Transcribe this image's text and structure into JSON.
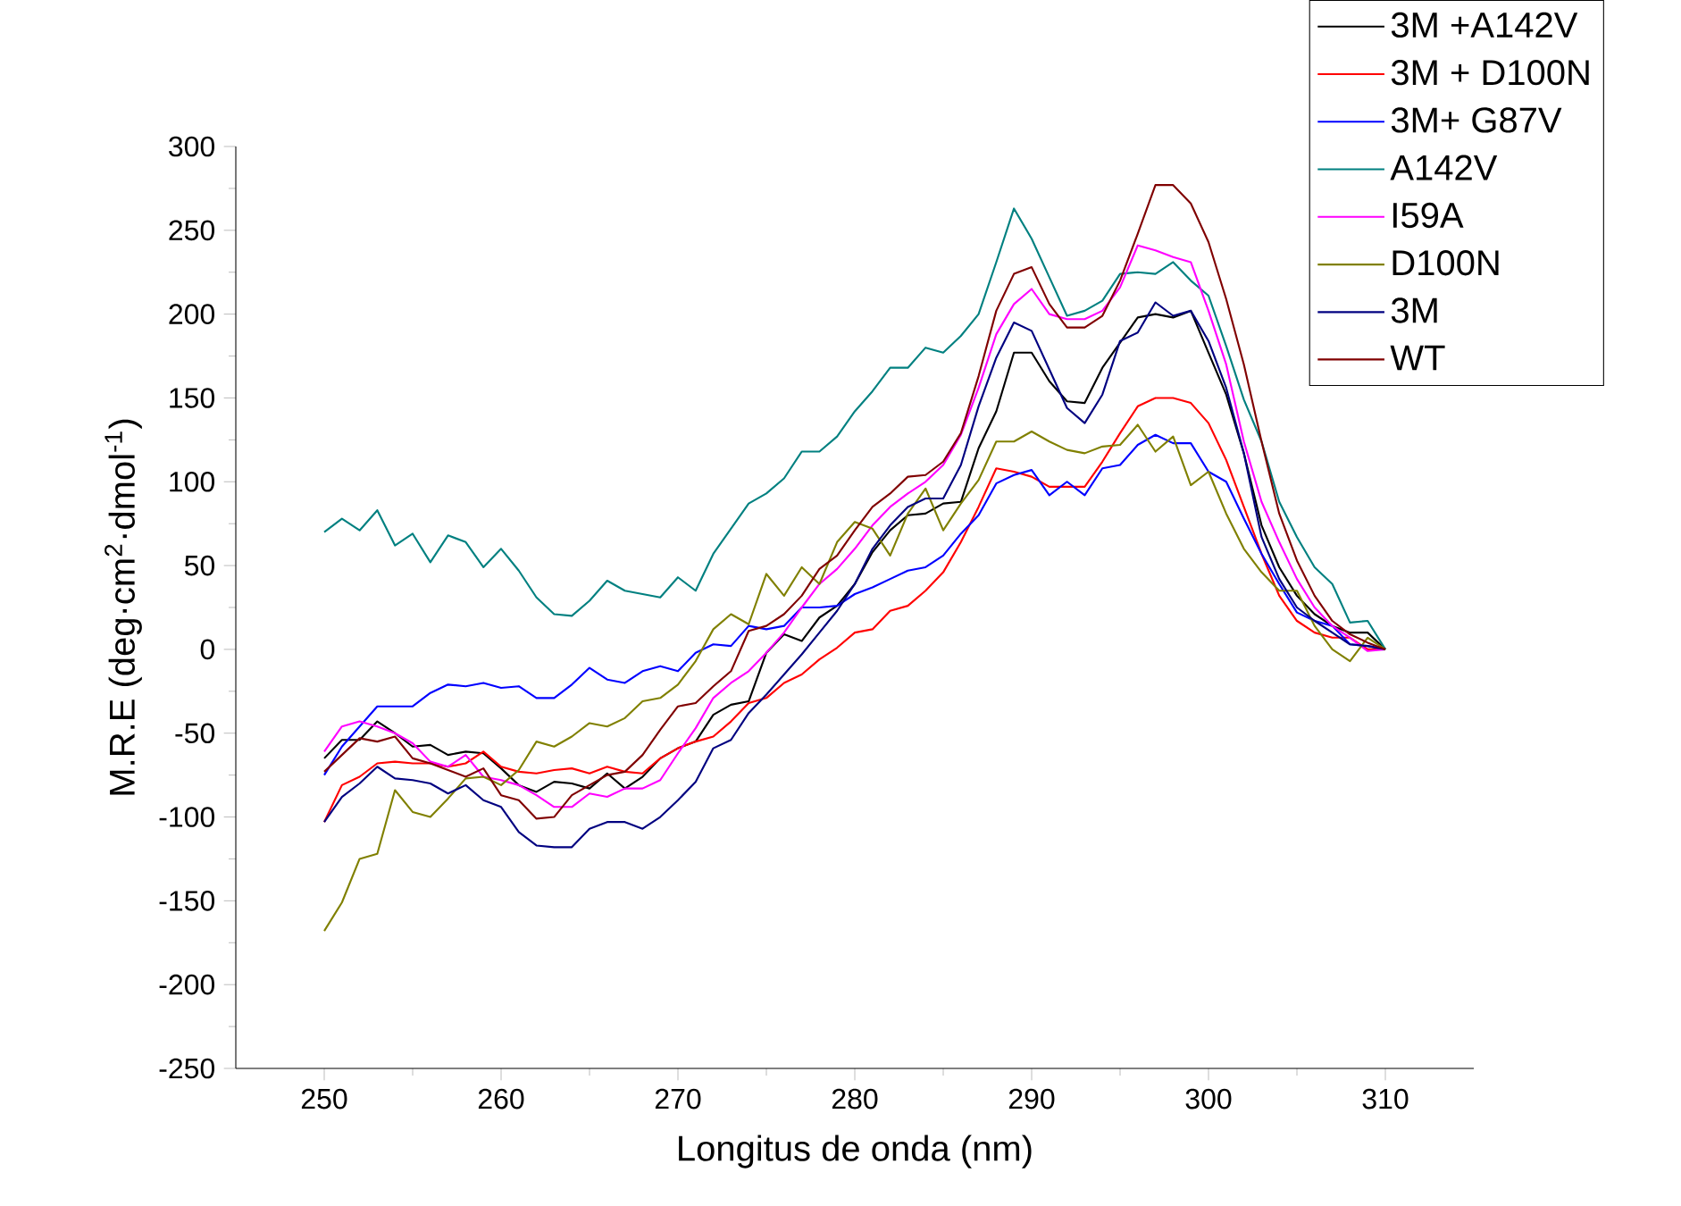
{
  "chart_data": {
    "type": "line",
    "xlabel": "Longitus de onda (nm)",
    "ylabel": "M.R.E (deg·cm$^{2}$·dmol$^{-1}$)",
    "xlim": [
      245,
      315
    ],
    "ylim": [
      -250,
      300
    ],
    "xticks": [
      250,
      260,
      270,
      280,
      290,
      300,
      310
    ],
    "yticks": [
      -250,
      -200,
      -150,
      -100,
      -50,
      0,
      50,
      100,
      150,
      200,
      250,
      300
    ],
    "legend": "top right",
    "x": [
      250,
      251,
      252,
      253,
      254,
      255,
      256,
      257,
      258,
      259,
      260,
      261,
      262,
      263,
      264,
      265,
      266,
      267,
      268,
      269,
      270,
      271,
      272,
      273,
      274,
      275,
      276,
      277,
      278,
      279,
      280,
      281,
      282,
      283,
      284,
      285,
      286,
      287,
      288,
      289,
      290,
      291,
      292,
      293,
      294,
      295,
      296,
      297,
      298,
      299,
      300,
      301,
      302,
      303,
      304,
      305,
      306,
      307,
      308,
      309,
      310
    ],
    "series": [
      {
        "name": "3M +A142V",
        "color": "#000000",
        "values": [
          -65,
          -54,
          -54,
          -43,
          -50,
          -58,
          -57,
          -63,
          -61,
          -62,
          -71,
          -81,
          -85,
          -79,
          -80,
          -83,
          -74,
          -83,
          -76,
          -65,
          -59,
          -55,
          -39,
          -33,
          -31,
          -2,
          9,
          5,
          19,
          26,
          39,
          58,
          71,
          80,
          81,
          87,
          88,
          120,
          142,
          177,
          177,
          160,
          148,
          147,
          168,
          183,
          198,
          200,
          198,
          202,
          177,
          152,
          117,
          74,
          49,
          32,
          21,
          14,
          10,
          10,
          0
        ]
      },
      {
        "name": "3M + D100N",
        "color": "#ff0000",
        "values": [
          -103,
          -81,
          -76,
          -68,
          -67,
          -68,
          -68,
          -70,
          -68,
          -61,
          -70,
          -73,
          -74,
          -72,
          -71,
          -74,
          -70,
          -73,
          -74,
          -65,
          -59,
          -55,
          -52,
          -43,
          -32,
          -29,
          -20,
          -15,
          -6,
          1,
          10,
          12,
          23,
          26,
          35,
          46,
          64,
          85,
          108,
          106,
          103,
          97,
          97,
          97,
          112,
          129,
          145,
          150,
          150,
          147,
          135,
          113,
          85,
          57,
          32,
          17,
          10,
          7,
          7,
          0,
          0
        ]
      },
      {
        "name": "3M+ G87V",
        "color": "#0000ff",
        "values": [
          -75,
          -58,
          -46,
          -34,
          -34,
          -34,
          -26,
          -21,
          -22,
          -20,
          -23,
          -22,
          -29,
          -29,
          -21,
          -11,
          -18,
          -20,
          -13,
          -10,
          -13,
          -2,
          3,
          2,
          14,
          12,
          14,
          25,
          25,
          26,
          33,
          37,
          42,
          47,
          49,
          56,
          69,
          80,
          99,
          104,
          107,
          92,
          100,
          92,
          108,
          110,
          122,
          128,
          123,
          123,
          106,
          100,
          78,
          57,
          39,
          22,
          17,
          14,
          3,
          2,
          0
        ]
      },
      {
        "name": "A142V",
        "color": "#008080",
        "values": [
          70,
          78,
          71,
          83,
          62,
          69,
          52,
          68,
          64,
          49,
          60,
          47,
          31,
          21,
          20,
          29,
          41,
          35,
          33,
          31,
          43,
          35,
          57,
          72,
          87,
          93,
          102,
          118,
          118,
          127,
          142,
          154,
          168,
          168,
          180,
          177,
          187,
          200,
          231,
          263,
          245,
          222,
          199,
          202,
          208,
          224,
          225,
          224,
          231,
          220,
          211,
          181,
          149,
          124,
          88,
          67,
          49,
          39,
          16,
          17,
          0
        ]
      },
      {
        "name": "I59A",
        "color": "#ff00ff",
        "values": [
          -61,
          -46,
          -43,
          -46,
          -50,
          -56,
          -67,
          -70,
          -63,
          -76,
          -78,
          -81,
          -87,
          -94,
          -94,
          -86,
          -88,
          -83,
          -83,
          -78,
          -62,
          -47,
          -29,
          -20,
          -13,
          -2,
          10,
          25,
          39,
          48,
          60,
          74,
          85,
          93,
          100,
          110,
          128,
          156,
          188,
          206,
          215,
          200,
          197,
          197,
          202,
          216,
          241,
          238,
          234,
          231,
          202,
          170,
          124,
          88,
          64,
          42,
          25,
          14,
          7,
          -1,
          0
        ]
      },
      {
        "name": "D100N",
        "color": "#808000",
        "values": [
          -168,
          -151,
          -125,
          -122,
          -84,
          -97,
          -100,
          -89,
          -77,
          -76,
          -81,
          -72,
          -55,
          -58,
          -52,
          -44,
          -46,
          -41,
          -31,
          -29,
          -21,
          -7,
          12,
          21,
          15,
          45,
          32,
          49,
          39,
          64,
          76,
          72,
          56,
          81,
          96,
          71,
          87,
          101,
          124,
          124,
          130,
          124,
          119,
          117,
          121,
          122,
          134,
          118,
          127,
          98,
          106,
          81,
          60,
          46,
          35,
          35,
          14,
          0,
          -7,
          7,
          0
        ]
      },
      {
        "name": "3M",
        "color": "#000080",
        "values": [
          -103,
          -88,
          -80,
          -70,
          -77,
          -78,
          -80,
          -86,
          -81,
          -90,
          -94,
          -109,
          -117,
          -118,
          -118,
          -107,
          -103,
          -103,
          -107,
          -100,
          -90,
          -79,
          -59,
          -54,
          -38,
          -27,
          -15,
          -3,
          10,
          23,
          39,
          60,
          74,
          85,
          90,
          90,
          110,
          145,
          174,
          195,
          190,
          167,
          144,
          135,
          152,
          184,
          189,
          207,
          199,
          202,
          184,
          156,
          117,
          67,
          42,
          25,
          17,
          10,
          3,
          2,
          0
        ]
      },
      {
        "name": "WT",
        "color": "#800000",
        "values": [
          -73,
          -63,
          -53,
          -55,
          -52,
          -65,
          -68,
          -72,
          -76,
          -71,
          -87,
          -90,
          -101,
          -100,
          -87,
          -81,
          -75,
          -73,
          -63,
          -48,
          -34,
          -32,
          -22,
          -13,
          11,
          14,
          21,
          32,
          48,
          56,
          71,
          85,
          93,
          103,
          104,
          112,
          129,
          163,
          202,
          224,
          228,
          206,
          192,
          192,
          199,
          220,
          248,
          277,
          277,
          266,
          243,
          209,
          170,
          124,
          81,
          53,
          32,
          17,
          9,
          4,
          0
        ]
      }
    ]
  }
}
